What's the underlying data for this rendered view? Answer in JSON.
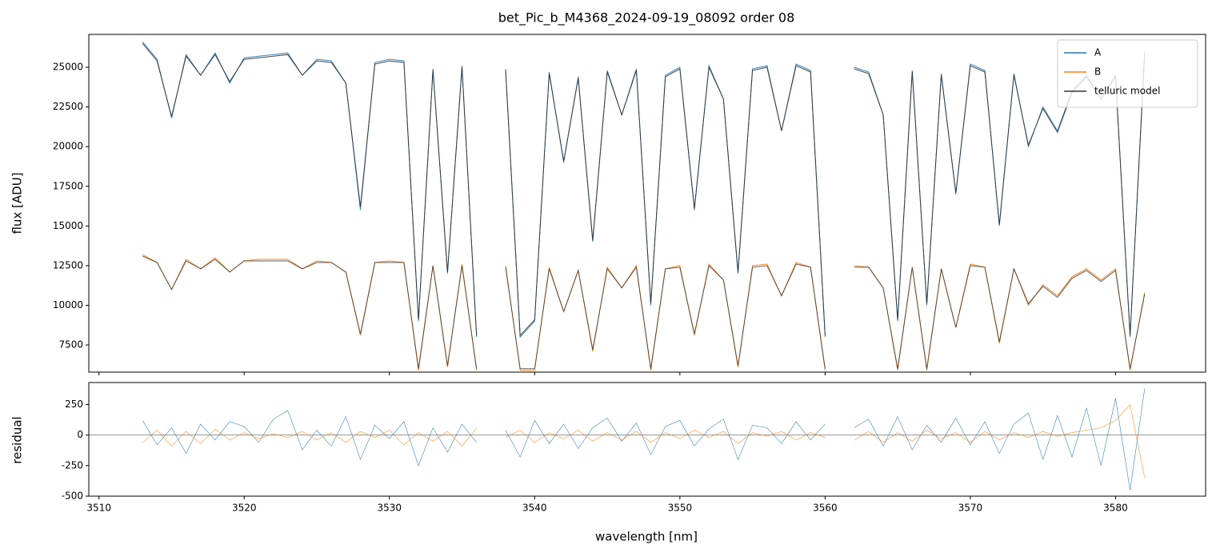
{
  "chart_data": [
    {
      "type": "line",
      "title": "bet_Pic_b_M4368_2024-09-19_08092  order 08",
      "ylabel": "flux [ADU]",
      "x": [
        3513,
        3514,
        3515,
        3516,
        3517,
        3518,
        3519,
        3520,
        3521,
        3522,
        3523,
        3524,
        3525,
        3526,
        3527,
        3528,
        3529,
        3530,
        3531,
        3532,
        3533,
        3534,
        3535,
        3536,
        3537,
        3538,
        3539,
        3540,
        3541,
        3542,
        3543,
        3544,
        3545,
        3546,
        3547,
        3548,
        3549,
        3550,
        3551,
        3552,
        3553,
        3554,
        3555,
        3556,
        3557,
        3558,
        3559,
        3560,
        3561,
        3562,
        3563,
        3564,
        3565,
        3566,
        3567,
        3568,
        3569,
        3570,
        3571,
        3572,
        3573,
        3574,
        3575,
        3576,
        3577,
        3578,
        3579,
        3580,
        3581,
        3582
      ],
      "xlim": [
        3509.3,
        3586.2
      ],
      "xticks": [
        3510,
        3520,
        3530,
        3540,
        3550,
        3560,
        3570,
        3580
      ],
      "ylim": [
        5790,
        27070
      ],
      "yticks": [
        7500,
        10000,
        12500,
        15000,
        17500,
        20000,
        22500,
        25000
      ],
      "legend": "upper right",
      "series": [
        {
          "name": "A",
          "color": "#1f77b4",
          "values": [
            26600,
            25500,
            21800,
            25800,
            24500,
            25900,
            24000,
            25600,
            25700,
            25800,
            25900,
            24500,
            25500,
            25400,
            24000,
            16000,
            25300,
            25500,
            25400,
            9000,
            24900,
            12000,
            25100,
            8000,
            null,
            24900,
            8000,
            9000,
            24700,
            19000,
            24400,
            14000,
            24800,
            22000,
            24900,
            10000,
            24500,
            25000,
            16000,
            25100,
            23000,
            12000,
            24900,
            25100,
            21000,
            25200,
            24800,
            8000,
            null,
            25000,
            24700,
            22000,
            9000,
            24800,
            10000,
            24600,
            17000,
            25200,
            24800,
            15000,
            24600,
            20000,
            22500,
            21000,
            23500,
            24500,
            23000,
            24500,
            8000,
            26000
          ]
        },
        {
          "name": "B",
          "color": "#ff7f0e",
          "values": [
            13200,
            12700,
            11000,
            12900,
            12300,
            13000,
            12100,
            12800,
            12900,
            12900,
            12900,
            12300,
            12800,
            12700,
            12100,
            8100,
            12700,
            12800,
            12700,
            5900,
            12500,
            6100,
            12600,
            5900,
            null,
            12500,
            5900,
            5900,
            12400,
            9600,
            12200,
            7100,
            12400,
            11100,
            12500,
            5900,
            12300,
            12500,
            8100,
            12600,
            11600,
            6100,
            12500,
            12600,
            10600,
            12700,
            12400,
            5900,
            null,
            12500,
            12400,
            11100,
            5900,
            12400,
            5900,
            12300,
            8600,
            12600,
            12400,
            7600,
            12300,
            10000,
            11300,
            10600,
            11800,
            12300,
            11600,
            12300,
            5900,
            10800
          ]
        },
        {
          "name": "telluric model",
          "color": "#333333",
          "values": [
            26500,
            25400,
            21900,
            25700,
            24500,
            25800,
            24100,
            25500,
            25600,
            25700,
            25800,
            24500,
            25400,
            25300,
            24000,
            16200,
            25200,
            25400,
            25300,
            9100,
            24800,
            12100,
            25000,
            8100,
            null,
            24800,
            8100,
            9100,
            24600,
            19100,
            24300,
            14100,
            24700,
            22000,
            24800,
            10100,
            24400,
            24900,
            16100,
            25000,
            23000,
            12100,
            24800,
            25000,
            21000,
            25100,
            24700,
            8100,
            null,
            24900,
            24600,
            22000,
            9100,
            24700,
            10100,
            24500,
            17100,
            25100,
            24700,
            15100,
            24500,
            20100,
            22400,
            20900,
            23400,
            24400,
            23000,
            24400,
            8100,
            25800
          ]
        },
        {
          "color": "#333333",
          "values": [
            13100,
            12700,
            11000,
            12800,
            12300,
            12900,
            12100,
            12800,
            12800,
            12800,
            12800,
            12300,
            12700,
            12700,
            12100,
            8200,
            12700,
            12700,
            12700,
            6000,
            12500,
            6200,
            12500,
            6000,
            null,
            12400,
            6000,
            6000,
            12300,
            9600,
            12200,
            7200,
            12300,
            11100,
            12400,
            6000,
            12300,
            12400,
            8200,
            12500,
            11600,
            6200,
            12400,
            12500,
            10600,
            12600,
            12400,
            6000,
            null,
            12400,
            12400,
            11100,
            6000,
            12400,
            6000,
            12300,
            8600,
            12500,
            12400,
            7700,
            12300,
            10100,
            11200,
            10500,
            11700,
            12200,
            11500,
            12200,
            6000,
            10700
          ]
        }
      ]
    },
    {
      "type": "line",
      "ylabel": "residual",
      "xlabel": "wavelength [nm]",
      "x": [
        3513,
        3514,
        3515,
        3516,
        3517,
        3518,
        3519,
        3520,
        3521,
        3522,
        3523,
        3524,
        3525,
        3526,
        3527,
        3528,
        3529,
        3530,
        3531,
        3532,
        3533,
        3534,
        3535,
        3536,
        3537,
        3538,
        3539,
        3540,
        3541,
        3542,
        3543,
        3544,
        3545,
        3546,
        3547,
        3548,
        3549,
        3550,
        3551,
        3552,
        3553,
        3554,
        3555,
        3556,
        3557,
        3558,
        3559,
        3560,
        3561,
        3562,
        3563,
        3564,
        3565,
        3566,
        3567,
        3568,
        3569,
        3570,
        3571,
        3572,
        3573,
        3574,
        3575,
        3576,
        3577,
        3578,
        3579,
        3580,
        3581,
        3582
      ],
      "xlim": [
        3509.3,
        3586.2
      ],
      "xticks": [
        3510,
        3520,
        3530,
        3540,
        3550,
        3560,
        3570,
        3580
      ],
      "ylim": [
        -500,
        430
      ],
      "yticks": [
        -500,
        -250,
        0,
        250
      ],
      "hline": 0,
      "series": [
        {
          "name": "A",
          "color": "#1f77b4",
          "values": [
            120,
            -80,
            60,
            -150,
            90,
            -40,
            110,
            70,
            -60,
            130,
            200,
            -120,
            40,
            -90,
            150,
            -200,
            80,
            -30,
            110,
            -250,
            60,
            -140,
            90,
            -60,
            null,
            40,
            -180,
            120,
            -70,
            90,
            -110,
            60,
            140,
            -50,
            100,
            -160,
            70,
            120,
            -90,
            50,
            130,
            -200,
            80,
            60,
            -70,
            110,
            -40,
            90,
            null,
            60,
            130,
            -90,
            150,
            -120,
            80,
            -60,
            140,
            -80,
            110,
            -150,
            90,
            180,
            -200,
            160,
            -180,
            220,
            -250,
            300,
            -450,
            380
          ]
        },
        {
          "name": "B",
          "color": "#ff7f0e",
          "values": [
            -60,
            40,
            -90,
            30,
            -70,
            50,
            -40,
            20,
            -30,
            10,
            -20,
            30,
            -40,
            20,
            -60,
            30,
            -20,
            40,
            -80,
            20,
            -50,
            30,
            -90,
            60,
            null,
            -20,
            40,
            -60,
            20,
            -30,
            40,
            -50,
            20,
            -40,
            30,
            -60,
            20,
            -30,
            40,
            -20,
            30,
            -70,
            20,
            -10,
            30,
            -40,
            20,
            -20,
            null,
            -40,
            30,
            -60,
            20,
            -50,
            40,
            -30,
            20,
            -60,
            30,
            -40,
            20,
            -20,
            30,
            -10,
            20,
            40,
            60,
            120,
            250,
            -350
          ]
        }
      ]
    }
  ]
}
